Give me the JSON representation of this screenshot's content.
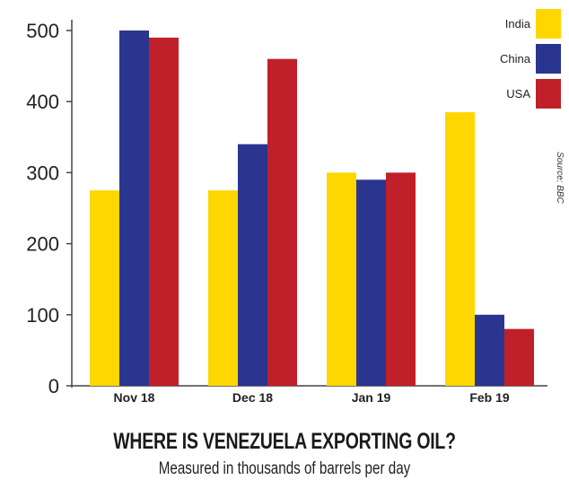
{
  "chart_data": {
    "type": "bar",
    "title": "WHERE IS VENEZUELA EXPORTING OIL?",
    "subtitle": "Measured in thousands of barrels per day",
    "source": "Source: BBC",
    "categories": [
      "Nov 18",
      "Dec 18",
      "Jan 19",
      "Feb 19"
    ],
    "series": [
      {
        "name": "India",
        "color": "#FFD700",
        "values": [
          275,
          275,
          300,
          385
        ]
      },
      {
        "name": "China",
        "color": "#2A3590",
        "values": [
          500,
          340,
          290,
          100
        ]
      },
      {
        "name": "USA",
        "color": "#C0202A",
        "values": [
          490,
          460,
          300,
          80
        ]
      }
    ],
    "yticks": [
      "0",
      "100",
      "200",
      "300",
      "400",
      "500"
    ],
    "ylim": [
      0,
      500
    ],
    "grid": false,
    "legend_position": "top-right"
  }
}
